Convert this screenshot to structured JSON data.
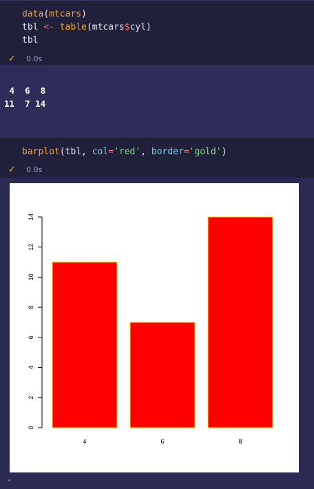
{
  "cell1": {
    "code": [
      "data(mtcars)",
      "tbl <- table(mtcars$cyl)",
      "tbl"
    ],
    "status_time": "0.0s"
  },
  "output": {
    "header_row": " 4  6  8",
    "value_row": "11  7 14"
  },
  "cell2": {
    "code": [
      "barplot(tbl, col='red', border='gold')"
    ],
    "status_time": "0.0s"
  },
  "colors": {
    "bar_fill": "#ff0000",
    "bar_border": "#ffd700",
    "check": "#e6c23a"
  },
  "icons": [
    "check-icon",
    "check-icon",
    "collapse-chevron-icon"
  ],
  "chart_data": {
    "type": "bar",
    "categories": [
      "4",
      "6",
      "8"
    ],
    "values": [
      11,
      7,
      14
    ],
    "ylim": [
      0,
      14
    ],
    "yticks": [
      0,
      2,
      4,
      6,
      8,
      10,
      12,
      14
    ],
    "title": "",
    "xlabel": "",
    "ylabel": ""
  }
}
